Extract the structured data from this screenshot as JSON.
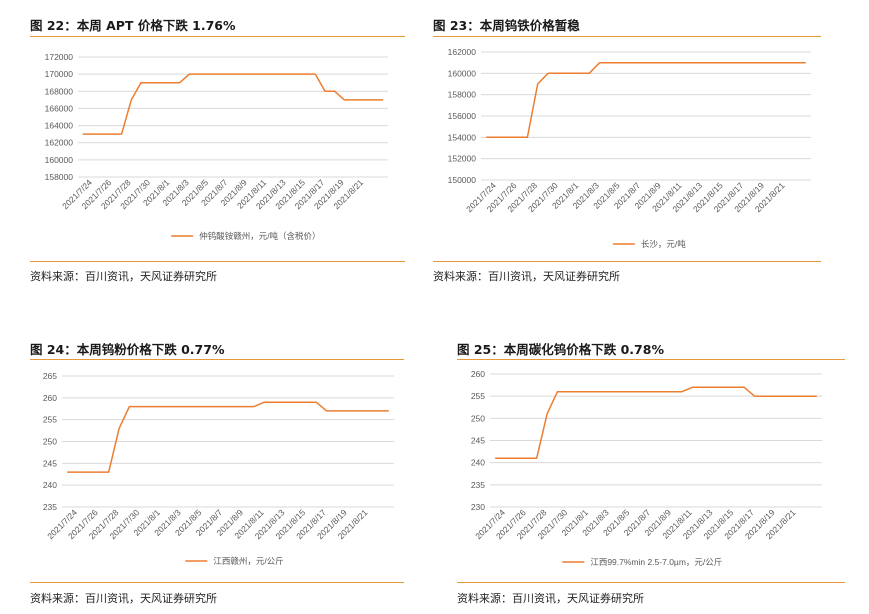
{
  "panels": [
    {
      "title": "图 22：本周 APT 价格下跌 1.76%",
      "source": "资料来源：百川资讯，天风证券研究所",
      "chart_data": {
        "type": "line",
        "x": [
          "2021/7/23",
          "2021/7/24",
          "2021/7/25",
          "2021/7/26",
          "2021/7/27",
          "2021/7/28",
          "2021/7/29",
          "2021/7/30",
          "2021/7/31",
          "2021/8/1",
          "2021/8/2",
          "2021/8/3",
          "2021/8/4",
          "2021/8/5",
          "2021/8/6",
          "2021/8/7",
          "2021/8/8",
          "2021/8/9",
          "2021/8/10",
          "2021/8/11",
          "2021/8/12",
          "2021/8/13",
          "2021/8/14",
          "2021/8/15",
          "2021/8/16",
          "2021/8/17",
          "2021/8/18",
          "2021/8/19",
          "2021/8/20",
          "2021/8/21",
          "2021/8/22",
          "2021/8/23"
        ],
        "xticklabels": [
          "2021/7/24",
          "2021/7/26",
          "2021/7/28",
          "2021/7/30",
          "2021/8/1",
          "2021/8/3",
          "2021/8/5",
          "2021/8/7",
          "2021/8/9",
          "2021/8/11",
          "2021/8/13",
          "2021/8/15",
          "2021/8/17",
          "2021/8/19",
          "2021/8/21"
        ],
        "series": [
          {
            "name": "仲钨酸铵赣州，元/吨（含税价）",
            "color": "#ED7D31",
            "values": [
              163000,
              163000,
              163000,
              163000,
              163000,
              167000,
              169000,
              169000,
              169000,
              169000,
              169000,
              170000,
              170000,
              170000,
              170000,
              170000,
              170000,
              170000,
              170000,
              170000,
              170000,
              170000,
              170000,
              170000,
              170000,
              168000,
              168000,
              167000,
              167000,
              167000,
              167000,
              167000
            ]
          }
        ],
        "yticks": [
          158000,
          160000,
          162000,
          164000,
          166000,
          168000,
          170000,
          172000
        ],
        "ylim": [
          158000,
          172000
        ],
        "legend": "bottom",
        "grid": true
      }
    },
    {
      "title": "图 23：本周钨铁价格暂稳",
      "source": "资料来源：百川资讯，天风证券研究所",
      "chart_data": {
        "type": "line",
        "x": [
          "2021/7/23",
          "2021/7/24",
          "2021/7/25",
          "2021/7/26",
          "2021/7/27",
          "2021/7/28",
          "2021/7/29",
          "2021/7/30",
          "2021/7/31",
          "2021/8/1",
          "2021/8/2",
          "2021/8/3",
          "2021/8/4",
          "2021/8/5",
          "2021/8/6",
          "2021/8/7",
          "2021/8/8",
          "2021/8/9",
          "2021/8/10",
          "2021/8/11",
          "2021/8/12",
          "2021/8/13",
          "2021/8/14",
          "2021/8/15",
          "2021/8/16",
          "2021/8/17",
          "2021/8/18",
          "2021/8/19",
          "2021/8/20",
          "2021/8/21",
          "2021/8/22",
          "2021/8/23"
        ],
        "xticklabels": [
          "2021/7/24",
          "2021/7/26",
          "2021/7/28",
          "2021/7/30",
          "2021/8/1",
          "2021/8/3",
          "2021/8/5",
          "2021/8/7",
          "2021/8/9",
          "2021/8/11",
          "2021/8/13",
          "2021/8/15",
          "2021/8/17",
          "2021/8/19",
          "2021/8/21"
        ],
        "series": [
          {
            "name": "长沙，元/吨",
            "color": "#ED7D31",
            "values": [
              154000,
              154000,
              154000,
              154000,
              154000,
              159000,
              160000,
              160000,
              160000,
              160000,
              160000,
              161000,
              161000,
              161000,
              161000,
              161000,
              161000,
              161000,
              161000,
              161000,
              161000,
              161000,
              161000,
              161000,
              161000,
              161000,
              161000,
              161000,
              161000,
              161000,
              161000,
              161000
            ]
          }
        ],
        "yticks": [
          150000,
          152000,
          154000,
          156000,
          158000,
          160000,
          162000
        ],
        "ylim": [
          150000,
          162000
        ],
        "legend": "bottom",
        "grid": true
      }
    },
    {
      "title": "图 24：本周钨粉价格下跌 0.77%",
      "source": "资料来源：百川资讯，天风证券研究所",
      "chart_data": {
        "type": "line",
        "x": [
          "2021/7/23",
          "2021/7/24",
          "2021/7/25",
          "2021/7/26",
          "2021/7/27",
          "2021/7/28",
          "2021/7/29",
          "2021/7/30",
          "2021/7/31",
          "2021/8/1",
          "2021/8/2",
          "2021/8/3",
          "2021/8/4",
          "2021/8/5",
          "2021/8/6",
          "2021/8/7",
          "2021/8/8",
          "2021/8/9",
          "2021/8/10",
          "2021/8/11",
          "2021/8/12",
          "2021/8/13",
          "2021/8/14",
          "2021/8/15",
          "2021/8/16",
          "2021/8/17",
          "2021/8/18",
          "2021/8/19",
          "2021/8/20",
          "2021/8/21",
          "2021/8/22",
          "2021/8/23"
        ],
        "xticklabels": [
          "2021/7/24",
          "2021/7/26",
          "2021/7/28",
          "2021/7/30",
          "2021/8/1",
          "2021/8/3",
          "2021/8/5",
          "2021/8/7",
          "2021/8/9",
          "2021/8/11",
          "2021/8/13",
          "2021/8/15",
          "2021/8/17",
          "2021/8/19",
          "2021/8/21"
        ],
        "series": [
          {
            "name": "江西赣州，元/公斤",
            "color": "#ED7D31",
            "values": [
              243,
              243,
              243,
              243,
              243,
              253,
              258,
              258,
              258,
              258,
              258,
              258,
              258,
              258,
              258,
              258,
              258,
              258,
              258,
              259,
              259,
              259,
              259,
              259,
              259,
              257,
              257,
              257,
              257,
              257,
              257,
              257
            ]
          }
        ],
        "yticks": [
          235,
          240,
          245,
          250,
          255,
          260,
          265
        ],
        "ylim": [
          235,
          265
        ],
        "legend": "bottom",
        "grid": true
      }
    },
    {
      "title": "图 25：本周碳化钨价格下跌 0.78%",
      "source": "资料来源：百川资讯，天风证券研究所",
      "chart_data": {
        "type": "line",
        "x": [
          "2021/7/23",
          "2021/7/24",
          "2021/7/25",
          "2021/7/26",
          "2021/7/27",
          "2021/7/28",
          "2021/7/29",
          "2021/7/30",
          "2021/7/31",
          "2021/8/1",
          "2021/8/2",
          "2021/8/3",
          "2021/8/4",
          "2021/8/5",
          "2021/8/6",
          "2021/8/7",
          "2021/8/8",
          "2021/8/9",
          "2021/8/10",
          "2021/8/11",
          "2021/8/12",
          "2021/8/13",
          "2021/8/14",
          "2021/8/15",
          "2021/8/16",
          "2021/8/17",
          "2021/8/18",
          "2021/8/19",
          "2021/8/20",
          "2021/8/21",
          "2021/8/22",
          "2021/8/23"
        ],
        "xticklabels": [
          "2021/7/24",
          "2021/7/26",
          "2021/7/28",
          "2021/7/30",
          "2021/8/1",
          "2021/8/3",
          "2021/8/5",
          "2021/8/7",
          "2021/8/9",
          "2021/8/11",
          "2021/8/13",
          "2021/8/15",
          "2021/8/17",
          "2021/8/19",
          "2021/8/21"
        ],
        "series": [
          {
            "name": "江西99.7%min 2.5-7.0&micro;m，元/公斤",
            "color": "#ED7D31",
            "values": [
              241,
              241,
              241,
              241,
              241,
              251,
              256,
              256,
              256,
              256,
              256,
              256,
              256,
              256,
              256,
              256,
              256,
              256,
              256,
              257,
              257,
              257,
              257,
              257,
              257,
              255,
              255,
              255,
              255,
              255,
              255,
              255
            ]
          }
        ],
        "yticks": [
          230,
          235,
          240,
          245,
          250,
          255,
          260
        ],
        "ylim": [
          230,
          260
        ],
        "legend": "bottom",
        "grid": true
      }
    }
  ]
}
